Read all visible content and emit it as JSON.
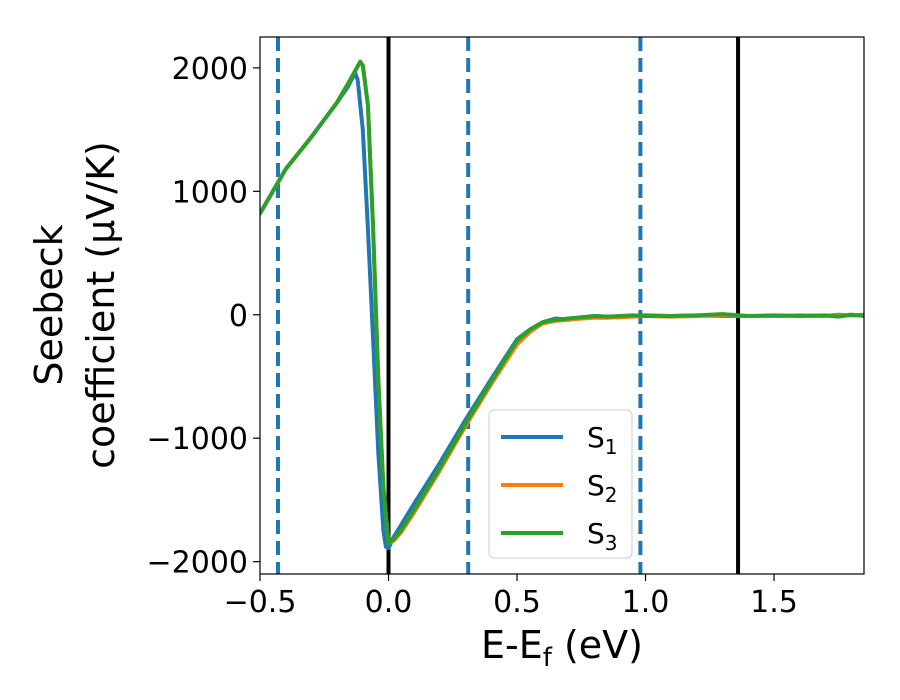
{
  "chart_data": {
    "type": "line",
    "xlabel": "E-E",
    "xlabel_sub": "f",
    "xlabel_unit": " (eV)",
    "ylabel_line1": "Seebeck",
    "ylabel_line2": "coefficient  (μV/K)",
    "xlim": [
      -0.5,
      1.85
    ],
    "ylim": [
      -2100,
      2250
    ],
    "xticks": [
      -0.5,
      0.0,
      0.5,
      1.0,
      1.5
    ],
    "xtick_labels": [
      "−0.5",
      "0.0",
      "0.5",
      "1.0",
      "1.5"
    ],
    "yticks": [
      -2000,
      -1000,
      0,
      1000,
      2000
    ],
    "ytick_labels": [
      "−2000",
      "−1000",
      "0",
      "1000",
      "2000"
    ],
    "grid": false,
    "legend_position": "lower-center",
    "vlines_solid": [
      0.0,
      1.36
    ],
    "vlines_dashed": [
      -0.43,
      0.31,
      0.98
    ],
    "vline_solid_color": "#000000",
    "vline_dashed_color": "#1f77b4",
    "series": [
      {
        "name": "S",
        "sub": "1",
        "color": "#1f77b4",
        "x": [
          -0.5,
          -0.4,
          -0.3,
          -0.2,
          -0.16,
          -0.13,
          -0.12,
          -0.1,
          -0.08,
          -0.06,
          -0.04,
          -0.02,
          -0.01,
          0.0,
          0.02,
          0.05,
          0.1,
          0.2,
          0.3,
          0.4,
          0.5,
          0.55,
          0.6,
          0.65,
          0.7,
          0.75,
          0.8,
          0.85,
          0.9,
          0.95,
          1.0,
          1.1,
          1.2,
          1.3,
          1.4,
          1.5,
          1.6,
          1.7,
          1.75,
          1.8,
          1.85
        ],
        "y": [
          820,
          1180,
          1440,
          1720,
          1840,
          1960,
          1900,
          1500,
          700,
          -200,
          -1100,
          -1750,
          -1880,
          -1890,
          -1800,
          -1700,
          -1530,
          -1200,
          -850,
          -520,
          -200,
          -120,
          -60,
          -30,
          -40,
          -25,
          -10,
          -15,
          -20,
          -10,
          -5,
          -10,
          -5,
          -10,
          -10,
          -10,
          -5,
          -10,
          0,
          -5,
          0
        ]
      },
      {
        "name": "S",
        "sub": "2",
        "color": "#ff7f0e",
        "x": [
          -0.5,
          -0.4,
          -0.3,
          -0.2,
          -0.15,
          -0.11,
          -0.1,
          -0.08,
          -0.06,
          -0.04,
          -0.02,
          0.0,
          0.02,
          0.05,
          0.1,
          0.2,
          0.3,
          0.4,
          0.5,
          0.55,
          0.6,
          0.65,
          0.7,
          0.75,
          0.8,
          0.85,
          0.9,
          0.95,
          1.0,
          1.1,
          1.2,
          1.3,
          1.4,
          1.5,
          1.6,
          1.7,
          1.75,
          1.8,
          1.85
        ],
        "y": [
          820,
          1180,
          1440,
          1720,
          1900,
          2050,
          2020,
          1700,
          700,
          -500,
          -1400,
          -1850,
          -1830,
          -1760,
          -1600,
          -1260,
          -900,
          -560,
          -240,
          -140,
          -70,
          -50,
          -40,
          -30,
          -25,
          -25,
          -20,
          -15,
          -10,
          -15,
          -10,
          -5,
          -10,
          -10,
          -5,
          -10,
          -5,
          0,
          -5
        ]
      },
      {
        "name": "S",
        "sub": "3",
        "color": "#2ca02c",
        "x": [
          -0.5,
          -0.4,
          -0.3,
          -0.2,
          -0.15,
          -0.11,
          -0.1,
          -0.08,
          -0.06,
          -0.04,
          -0.02,
          0.0,
          0.02,
          0.05,
          0.1,
          0.2,
          0.3,
          0.4,
          0.5,
          0.55,
          0.6,
          0.65,
          0.7,
          0.75,
          0.8,
          0.85,
          0.9,
          0.95,
          1.0,
          1.1,
          1.2,
          1.3,
          1.4,
          1.5,
          1.6,
          1.7,
          1.75,
          1.8,
          1.85
        ],
        "y": [
          820,
          1180,
          1440,
          1720,
          1900,
          2050,
          2020,
          1700,
          700,
          -500,
          -1400,
          -1850,
          -1820,
          -1740,
          -1580,
          -1240,
          -880,
          -540,
          -210,
          -120,
          -60,
          -40,
          -30,
          -20,
          -10,
          -15,
          -10,
          -5,
          -10,
          -10,
          -5,
          5,
          -10,
          -5,
          -10,
          -5,
          -15,
          0,
          -10
        ]
      }
    ]
  }
}
